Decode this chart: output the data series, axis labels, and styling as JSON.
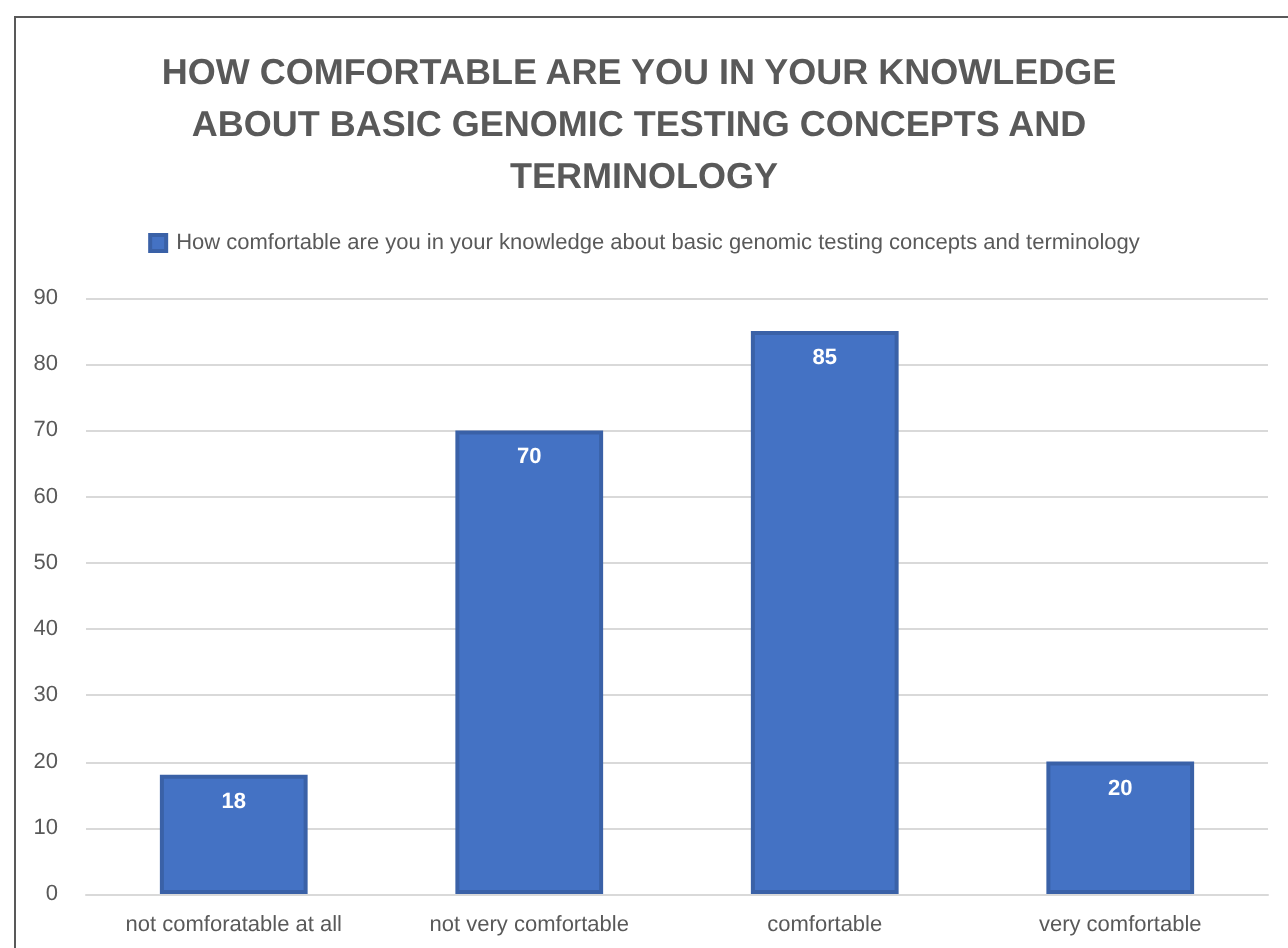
{
  "chart_data": {
    "type": "bar",
    "title": "HOW COMFORTABLE ARE YOU IN YOUR KNOWLEDGE ABOUT BASIC GENOMIC TESTING CONCEPTS AND TERMINOLOGY",
    "categories": [
      "not comforatable at all",
      "not very comfortable",
      "comfortable",
      "very comfortable"
    ],
    "series": [
      {
        "name": "How comfortable are you in your knowledge about basic genomic testing concepts and terminology",
        "color": "#4472c4",
        "values": [
          18,
          70,
          85,
          20
        ]
      }
    ],
    "ylim": [
      0,
      90
    ],
    "yticks": [
      0,
      10,
      20,
      30,
      40,
      50,
      60,
      70,
      80,
      90
    ],
    "grid": "y",
    "legend": "top",
    "data_labels": true
  }
}
